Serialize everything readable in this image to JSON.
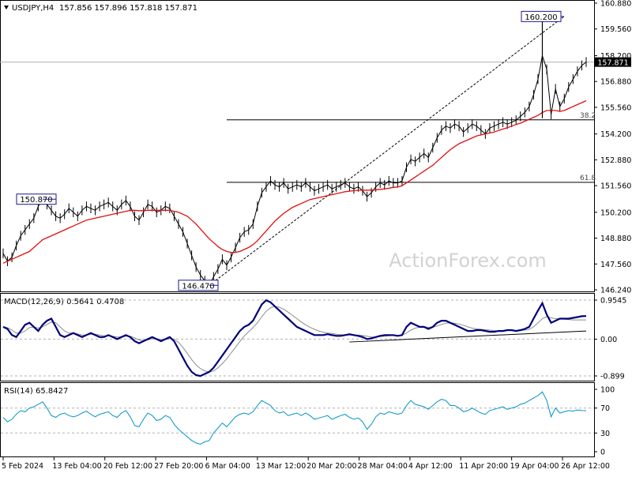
{
  "colors": {
    "background": "#ffffff",
    "frame": "#000000",
    "price": "#000000",
    "ma": "#e01010",
    "macd": "#00007a",
    "signal": "#8c8c8c",
    "rsi": "#0094c8",
    "callout_border": "#1a1a8c",
    "fib": "#000000",
    "watermark": "#d2d2d2"
  },
  "header": {
    "symbol": "USDJPY,H4",
    "ohlc": "157.856 157.896 157.818 157.871"
  },
  "watermark": "ActionForex.com",
  "chart_data": [
    {
      "type": "line",
      "title": "USDJPY,H4 157.856 157.896 157.818 157.871",
      "ylim": [
        146.24,
        160.88
      ],
      "y_ticks": [
        "160.880",
        "159.560",
        "158.200",
        "156.880",
        "155.560",
        "154.200",
        "152.880",
        "151.560",
        "150.200",
        "148.880",
        "147.560",
        "146.240"
      ],
      "x_ticks": [
        "5 Feb 2024",
        "13 Feb 04:00",
        "20 Feb 12:00",
        "27 Feb 20:00",
        "6 Mar 04:00",
        "13 Mar 12:00",
        "20 Mar 20:00",
        "28 Mar 04:00",
        "4 Apr 12:00",
        "11 Apr 20:00",
        "19 Apr 04:00",
        "26 Apr 12:00"
      ],
      "series": [
        {
          "values": [
            148.1,
            147.7,
            147.9,
            148.5,
            149.0,
            149.3,
            149.6,
            149.9,
            150.5,
            150.87,
            150.6,
            150.3,
            150.0,
            149.9,
            150.1,
            150.4,
            150.2,
            150.0,
            150.3,
            150.5,
            150.4,
            150.3,
            150.5,
            150.6,
            150.7,
            150.5,
            150.3,
            150.6,
            150.8,
            150.5,
            150.0,
            149.8,
            150.2,
            150.6,
            150.5,
            150.2,
            150.3,
            150.5,
            150.4,
            150.0,
            149.6,
            149.2,
            148.6,
            148.0,
            147.4,
            147.0,
            146.7,
            146.47,
            146.9,
            147.3,
            147.8,
            147.5,
            147.9,
            148.4,
            148.9,
            149.2,
            149.3,
            149.6,
            150.5,
            151.2,
            151.5,
            151.8,
            151.6,
            151.5,
            151.7,
            151.4,
            151.5,
            151.6,
            151.5,
            151.7,
            151.5,
            151.3,
            151.4,
            151.5,
            151.6,
            151.4,
            151.5,
            151.6,
            151.7,
            151.5,
            151.4,
            151.5,
            151.3,
            151.0,
            151.2,
            151.5,
            151.7,
            151.6,
            151.8,
            151.7,
            151.7,
            151.8,
            152.5,
            152.9,
            152.8,
            153.0,
            153.2,
            153.0,
            153.5,
            154.0,
            154.4,
            154.6,
            154.5,
            154.7,
            154.6,
            154.3,
            154.5,
            154.7,
            154.6,
            154.4,
            154.2,
            154.5,
            154.6,
            154.7,
            154.8,
            154.7,
            154.8,
            154.9,
            155.1,
            155.3,
            155.6,
            156.2,
            157.0,
            158.2,
            157.5,
            155.2,
            156.5,
            155.6,
            156.0,
            156.6,
            157.0,
            157.4,
            157.7,
            157.871
          ]
        },
        {
          "values": [
            147.6,
            147.7,
            147.8,
            147.9,
            148.0,
            148.1,
            148.2,
            148.4,
            148.6,
            148.8,
            148.9,
            149.0,
            149.1,
            149.2,
            149.3,
            149.4,
            149.5,
            149.6,
            149.7,
            149.8,
            149.85,
            149.9,
            149.95,
            150.0,
            150.05,
            150.1,
            150.15,
            150.2,
            150.25,
            150.3,
            150.3,
            150.28,
            150.28,
            150.3,
            150.3,
            150.3,
            150.3,
            150.3,
            150.3,
            150.25,
            150.2,
            150.1,
            150.0,
            149.8,
            149.6,
            149.35,
            149.1,
            148.85,
            148.65,
            148.45,
            148.3,
            148.2,
            148.15,
            148.15,
            148.2,
            148.3,
            148.4,
            148.55,
            148.75,
            149.0,
            149.25,
            149.5,
            149.75,
            149.95,
            150.15,
            150.3,
            150.45,
            150.55,
            150.65,
            150.75,
            150.85,
            150.9,
            150.95,
            151.0,
            151.05,
            151.1,
            151.15,
            151.2,
            151.25,
            151.28,
            151.3,
            151.32,
            151.33,
            151.33,
            151.33,
            151.35,
            151.37,
            151.4,
            151.43,
            151.47,
            151.5,
            151.55,
            151.7,
            151.85,
            152.0,
            152.15,
            152.3,
            152.45,
            152.6,
            152.8,
            153.0,
            153.2,
            153.4,
            153.55,
            153.7,
            153.8,
            153.9,
            154.0,
            154.1,
            154.15,
            154.2,
            154.25,
            154.3,
            154.38,
            154.45,
            154.52,
            154.6,
            154.68,
            154.75,
            154.85,
            154.95,
            155.05,
            155.15,
            155.3,
            155.4,
            155.4,
            155.4,
            155.35,
            155.4,
            155.5,
            155.6,
            155.7,
            155.8,
            155.9
          ]
        }
      ]
    },
    {
      "type": "line",
      "title": "MACD(12,26,9) 0.5641 0.4708",
      "ylim": [
        -0.899,
        0.9545
      ],
      "y_ticks": [
        "0.9545",
        "0.00",
        "-0.899"
      ],
      "series": [
        {
          "values": [
            0.3,
            0.25,
            0.1,
            0.05,
            0.2,
            0.35,
            0.4,
            0.3,
            0.2,
            0.35,
            0.45,
            0.5,
            0.3,
            0.1,
            0.05,
            0.1,
            0.15,
            0.1,
            0.05,
            0.1,
            0.15,
            0.1,
            0.05,
            0.05,
            0.1,
            0.05,
            0.0,
            0.05,
            0.1,
            0.05,
            -0.05,
            -0.1,
            -0.05,
            0.0,
            0.05,
            0.0,
            -0.05,
            0.0,
            0.05,
            -0.05,
            -0.25,
            -0.45,
            -0.65,
            -0.8,
            -0.88,
            -0.9,
            -0.85,
            -0.8,
            -0.7,
            -0.55,
            -0.4,
            -0.25,
            -0.1,
            0.05,
            0.2,
            0.3,
            0.35,
            0.45,
            0.65,
            0.85,
            0.95,
            0.9,
            0.8,
            0.7,
            0.6,
            0.5,
            0.4,
            0.3,
            0.25,
            0.2,
            0.15,
            0.1,
            0.1,
            0.1,
            0.12,
            0.1,
            0.08,
            0.08,
            0.1,
            0.12,
            0.1,
            0.08,
            0.05,
            0.0,
            0.02,
            0.05,
            0.08,
            0.1,
            0.1,
            0.1,
            0.08,
            0.1,
            0.3,
            0.4,
            0.35,
            0.3,
            0.3,
            0.25,
            0.3,
            0.4,
            0.45,
            0.45,
            0.4,
            0.35,
            0.3,
            0.25,
            0.2,
            0.2,
            0.22,
            0.22,
            0.2,
            0.18,
            0.18,
            0.2,
            0.2,
            0.22,
            0.22,
            0.2,
            0.22,
            0.25,
            0.3,
            0.5,
            0.7,
            0.88,
            0.6,
            0.4,
            0.45,
            0.5,
            0.5,
            0.5,
            0.52,
            0.54,
            0.56,
            0.5641
          ]
        },
        {
          "values": [
            0.3,
            0.28,
            0.22,
            0.15,
            0.15,
            0.2,
            0.28,
            0.3,
            0.27,
            0.3,
            0.36,
            0.42,
            0.4,
            0.3,
            0.2,
            0.15,
            0.15,
            0.13,
            0.1,
            0.1,
            0.12,
            0.12,
            0.1,
            0.08,
            0.08,
            0.07,
            0.05,
            0.05,
            0.07,
            0.07,
            0.03,
            -0.02,
            -0.03,
            -0.02,
            0.01,
            0.01,
            -0.01,
            -0.01,
            0.01,
            0.0,
            -0.08,
            -0.2,
            -0.35,
            -0.5,
            -0.63,
            -0.72,
            -0.78,
            -0.8,
            -0.78,
            -0.7,
            -0.6,
            -0.48,
            -0.34,
            -0.2,
            -0.06,
            0.08,
            0.18,
            0.28,
            0.4,
            0.55,
            0.68,
            0.77,
            0.8,
            0.78,
            0.73,
            0.66,
            0.58,
            0.5,
            0.42,
            0.35,
            0.29,
            0.24,
            0.2,
            0.17,
            0.15,
            0.14,
            0.12,
            0.11,
            0.1,
            0.1,
            0.1,
            0.1,
            0.09,
            0.07,
            0.05,
            0.05,
            0.06,
            0.07,
            0.08,
            0.09,
            0.09,
            0.09,
            0.15,
            0.22,
            0.27,
            0.29,
            0.3,
            0.29,
            0.29,
            0.32,
            0.36,
            0.39,
            0.4,
            0.39,
            0.37,
            0.34,
            0.3,
            0.27,
            0.25,
            0.24,
            0.23,
            0.22,
            0.21,
            0.2,
            0.2,
            0.21,
            0.21,
            0.21,
            0.21,
            0.22,
            0.24,
            0.3,
            0.4,
            0.5,
            0.55,
            0.52,
            0.5,
            0.5,
            0.49,
            0.48,
            0.47,
            0.47,
            0.47,
            0.4708
          ]
        }
      ]
    },
    {
      "type": "line",
      "title": "RSI(14) 65.8427",
      "ylim": [
        0,
        100
      ],
      "y_ticks": [
        "100",
        "70",
        "30",
        "0"
      ],
      "series": [
        {
          "values": [
            55,
            48,
            52,
            60,
            66,
            64,
            70,
            72,
            76,
            80,
            70,
            58,
            55,
            60,
            62,
            58,
            56,
            58,
            62,
            65,
            60,
            56,
            60,
            62,
            64,
            58,
            55,
            62,
            66,
            56,
            42,
            40,
            52,
            62,
            58,
            50,
            52,
            58,
            55,
            44,
            36,
            30,
            24,
            18,
            14,
            12,
            16,
            18,
            30,
            38,
            46,
            40,
            48,
            56,
            60,
            62,
            60,
            64,
            74,
            82,
            78,
            74,
            66,
            62,
            64,
            58,
            60,
            62,
            58,
            62,
            58,
            52,
            54,
            56,
            58,
            52,
            55,
            58,
            60,
            55,
            52,
            54,
            48,
            36,
            44,
            56,
            62,
            60,
            64,
            62,
            60,
            62,
            74,
            82,
            76,
            74,
            72,
            68,
            74,
            80,
            84,
            82,
            74,
            74,
            70,
            64,
            66,
            70,
            66,
            62,
            60,
            66,
            68,
            70,
            72,
            68,
            70,
            72,
            76,
            78,
            82,
            86,
            90,
            96,
            82,
            56,
            70,
            62,
            64,
            66,
            65,
            67,
            66,
            65.8427
          ]
        }
      ]
    }
  ],
  "annotations": {
    "current_price": "157.871",
    "high_label": "160.200",
    "low_label": "146.470",
    "swing_label": "150.870",
    "fib_38": "38.2",
    "fib_61": "61.8",
    "fib_38_price": 154.92,
    "fib_61_price": 151.73,
    "trendline_macd": [
      {
        "x": 79,
        "y": -0.07
      },
      {
        "x": 133,
        "y": 0.2
      }
    ]
  }
}
